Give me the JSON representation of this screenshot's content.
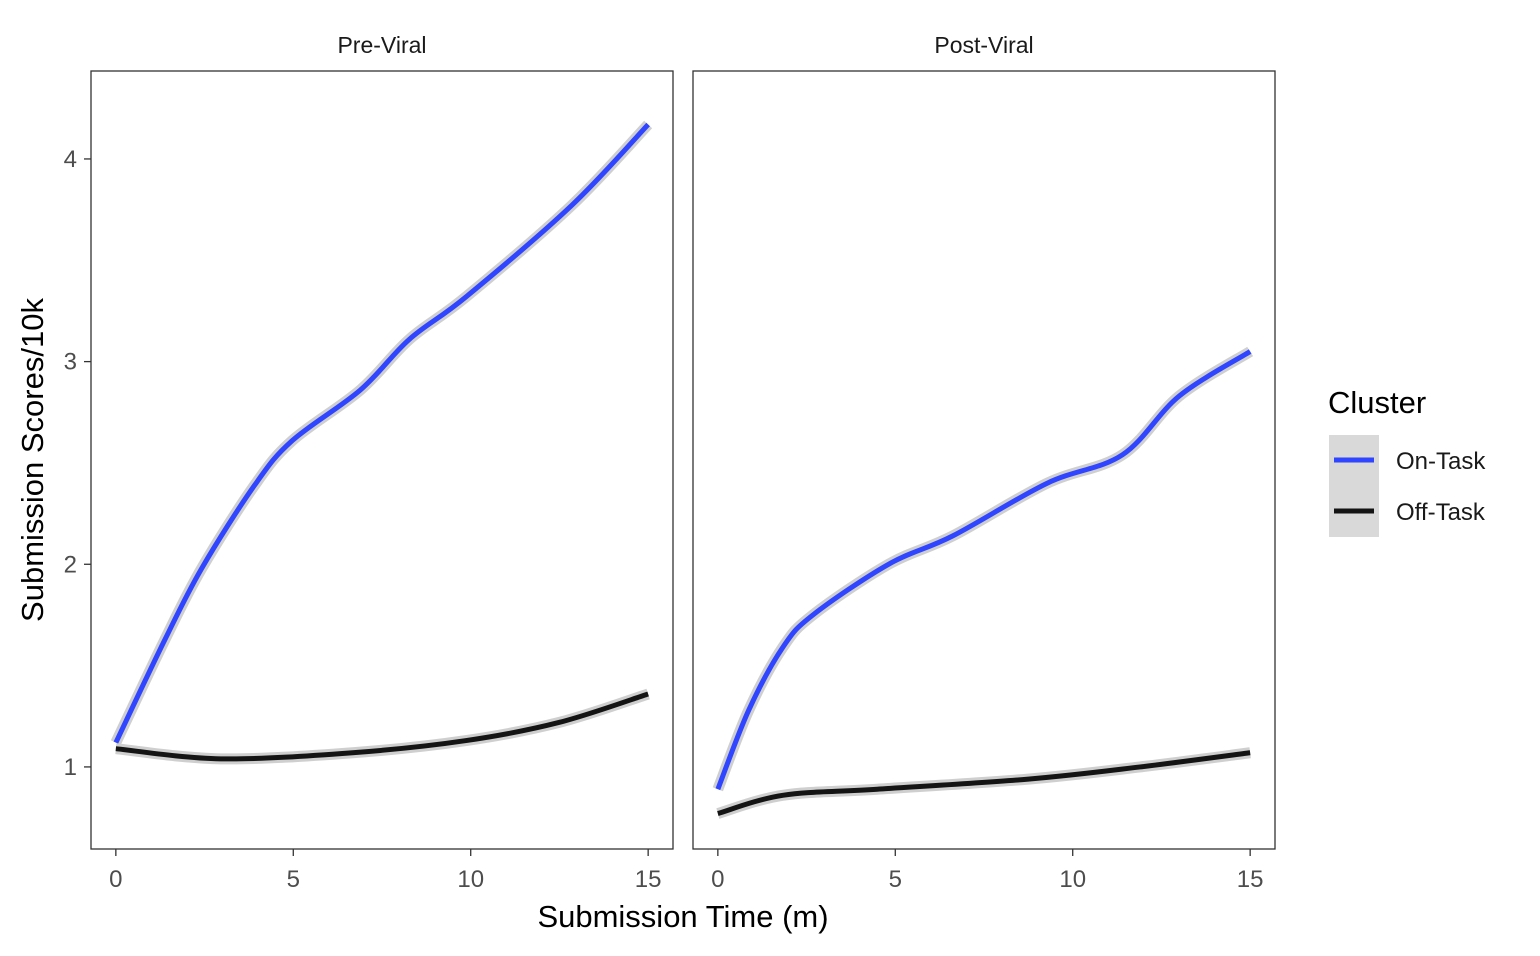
{
  "chart_data": {
    "type": "line",
    "xlabel": "Submission Time (m)",
    "ylabel": "Submission Scores/10k",
    "xlim": [
      -0.7,
      15.7
    ],
    "ylim": [
      0.595,
      4.434
    ],
    "x_ticks": [
      0,
      5,
      10,
      15
    ],
    "y_ticks": [
      1,
      2,
      3,
      4
    ],
    "grid": false,
    "legend": {
      "title": "Cluster",
      "placement": "right",
      "entries": [
        "On-Task",
        "Off-Task"
      ]
    },
    "colors": {
      "On-Task": "#3045ff",
      "Off-Task": "#141414",
      "ribbon": "#cfcfcf"
    },
    "panels": [
      {
        "title": "Pre-Viral",
        "series": [
          {
            "name": "On-Task",
            "x": [
              0,
              1.36,
              2.42,
              3.91,
              4.97,
              6.89,
              8.27,
              9.87,
              12.84,
              15
            ],
            "y": [
              1.12,
              1.62,
              1.98,
              2.39,
              2.61,
              2.86,
              3.11,
              3.32,
              3.77,
              4.17
            ]
          },
          {
            "name": "Off-Task",
            "x": [
              0,
              2.96,
              6.67,
              9.87,
              12.5,
              15
            ],
            "y": [
              1.09,
              1.04,
              1.07,
              1.13,
              1.22,
              1.36
            ]
          }
        ]
      },
      {
        "title": "Post-Viral",
        "series": [
          {
            "name": "On-Task",
            "x": [
              0,
              0.87,
              1.83,
              2.68,
              4.81,
              6.62,
              9.28,
              11.4,
              13.0,
              15
            ],
            "y": [
              0.89,
              1.28,
              1.59,
              1.75,
              2.0,
              2.14,
              2.4,
              2.54,
              2.83,
              3.05
            ]
          },
          {
            "name": "Off-Task",
            "x": [
              0,
              1.83,
              4.49,
              8.75,
              11.9,
              15
            ],
            "y": [
              0.77,
              0.86,
              0.89,
              0.94,
              1.0,
              1.07
            ]
          }
        ]
      }
    ]
  }
}
